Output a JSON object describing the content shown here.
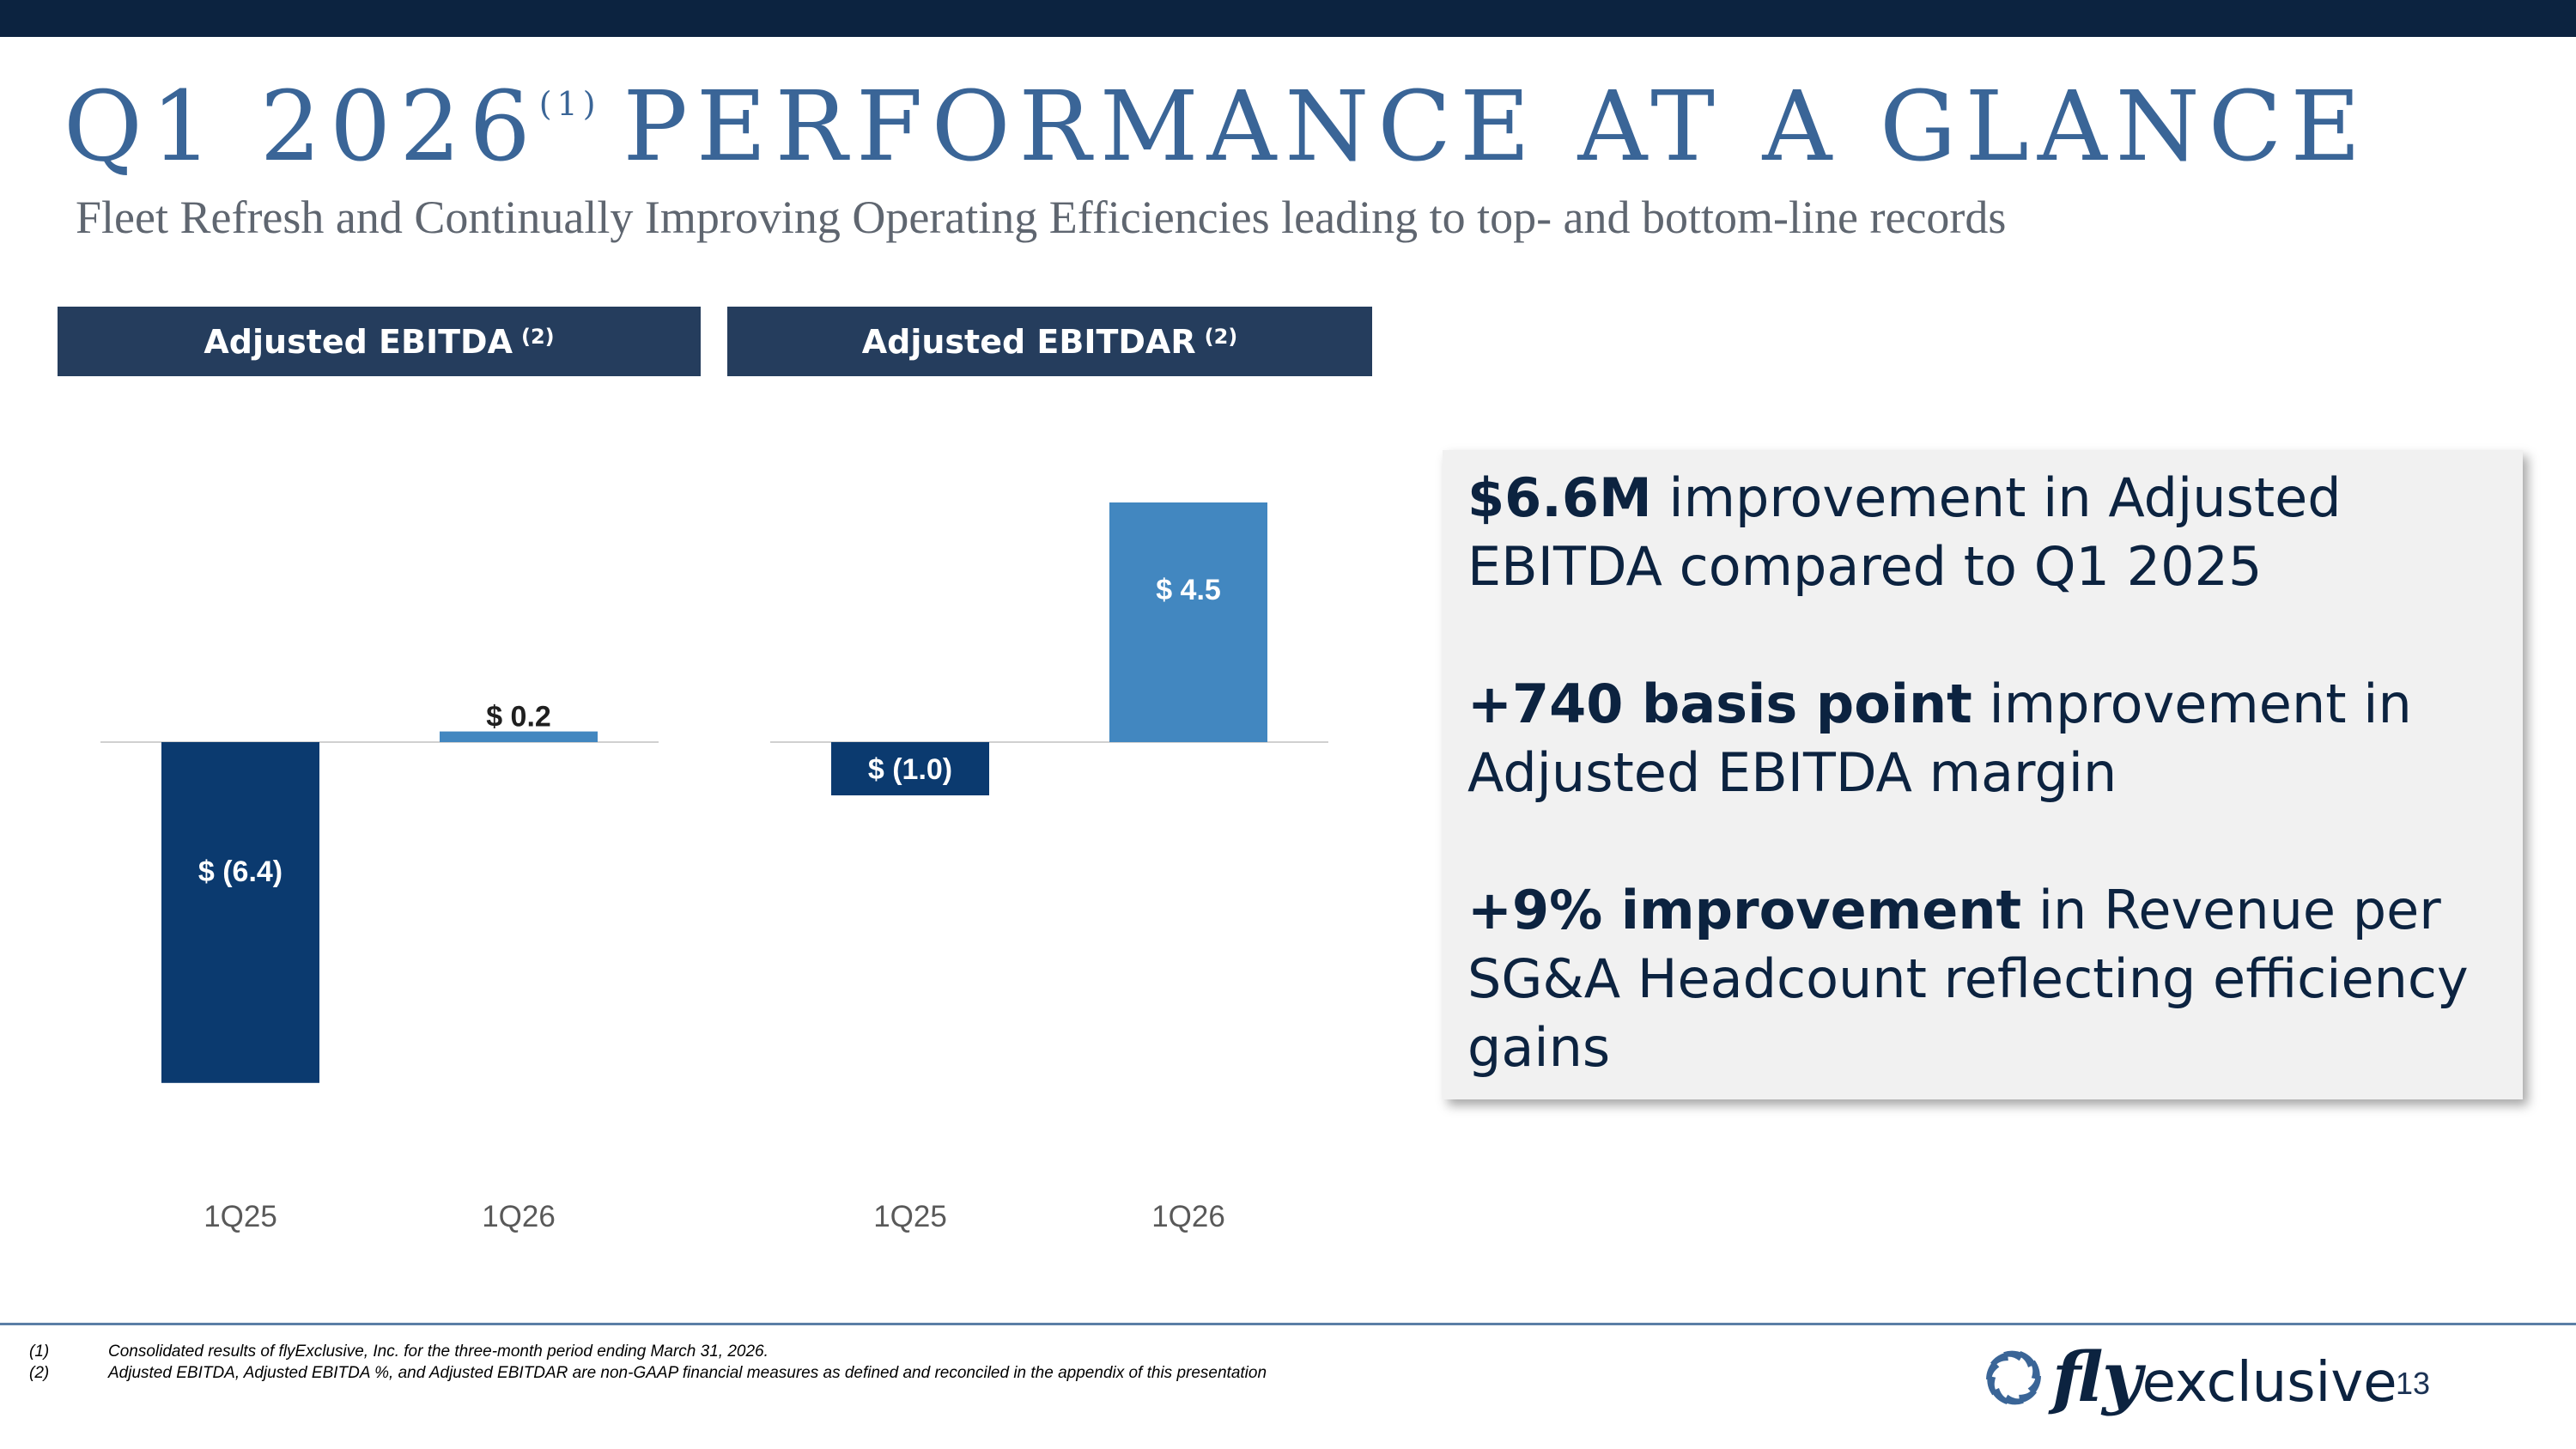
{
  "page": {
    "title_main": "Q1 2026",
    "title_sup": "(1)",
    "title_rest": "PERFORMANCE AT A GLANCE",
    "subtitle": "Fleet Refresh and Continually Improving Operating Efficiencies leading to top- and bottom-line records",
    "page_number": "13"
  },
  "headers": [
    {
      "label": "Adjusted EBITDA",
      "note": "(2)"
    },
    {
      "label": "Adjusted EBITDAR",
      "note": "(2)"
    }
  ],
  "colors": {
    "topbar": "#0c2340",
    "title": "#3a6597",
    "header_bg": "#253d5d",
    "bar_1q25": "#0b3a6f",
    "bar_1q26": "#4287c0",
    "callout_bg": "#f1f1f1",
    "callout_text": "#0c2340"
  },
  "chart_data": [
    {
      "type": "bar",
      "title": "Adjusted EBITDA (2)",
      "categories": [
        "1Q25",
        "1Q26"
      ],
      "values": [
        -6.4,
        0.2
      ],
      "value_labels": [
        "$ (6.4)",
        "$ 0.2"
      ]
    },
    {
      "type": "bar",
      "title": "Adjusted EBITDAR (2)",
      "categories": [
        "1Q25",
        "1Q26"
      ],
      "values": [
        -1.0,
        4.5
      ],
      "value_labels": [
        "$ (1.0)",
        "$ 4.5"
      ]
    }
  ],
  "callout": {
    "p1_bold": "$6.6M",
    "p1_text": " improvement in Adjusted EBITDA compared to Q1 2025",
    "p2_bold": "+740 basis point",
    "p2_text": " improvement in Adjusted EBITDA margin",
    "p3_bold": "+9% improvement",
    "p3_text": " in Revenue per SG&A Headcount reflecting efficiency gains"
  },
  "footnotes": [
    {
      "num": "(1)",
      "text": "Consolidated results of flyExclusive, Inc. for the three-month period ending March 31, 2026."
    },
    {
      "num": "(2)",
      "text": "Adjusted EBITDA, Adjusted EBITDA %, and Adjusted EBITDAR are non-GAAP financial measures as defined and reconciled in the appendix of this presentation"
    }
  ],
  "logo": {
    "fly": "fly",
    "exclusive": "exclusive",
    "icon": "turbine-icon"
  }
}
